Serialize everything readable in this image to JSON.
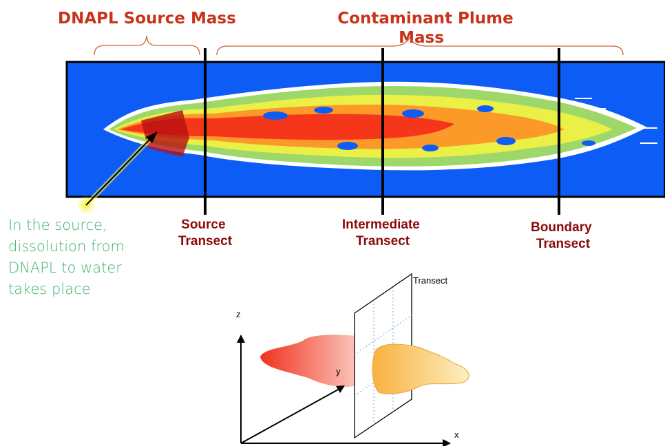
{
  "header": {
    "source_mass": "DNAPL Source Mass",
    "plume_mass": [
      "Contaminant Plume",
      "Mass"
    ]
  },
  "transects": [
    {
      "label": [
        "Source",
        "Transect"
      ]
    },
    {
      "label": [
        "Intermediate",
        "Transect"
      ]
    },
    {
      "label": [
        "Boundary",
        "Transect"
      ]
    }
  ],
  "note": [
    "In the source,",
    "dissolution from",
    "DNAPL to water",
    "takes place"
  ],
  "diagram": {
    "transect": "Transect",
    "axes": {
      "z": "z",
      "y": "y",
      "x": "x"
    }
  }
}
